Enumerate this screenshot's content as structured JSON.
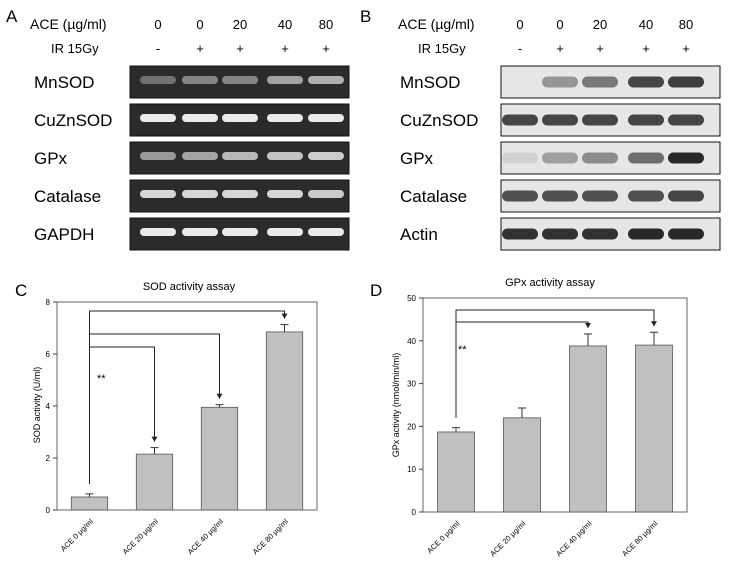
{
  "panels": {
    "A": {
      "letter": "A",
      "ace_label": "ACE (µg/ml)",
      "ir_label": "IR 15Gy",
      "doses": [
        "0",
        "0",
        "20",
        "40",
        "80"
      ],
      "ir": [
        "-",
        "+",
        "+",
        "+",
        "+"
      ],
      "rows": [
        "MnSOD",
        "CuZnSOD",
        "GPx",
        "Catalase",
        "GAPDH"
      ],
      "band_intensity": [
        [
          0.35,
          0.45,
          0.45,
          0.6,
          0.65
        ],
        [
          0.95,
          0.95,
          0.95,
          0.95,
          0.95
        ],
        [
          0.55,
          0.6,
          0.7,
          0.75,
          0.8
        ],
        [
          0.85,
          0.85,
          0.85,
          0.85,
          0.8
        ],
        [
          0.95,
          0.95,
          0.95,
          0.95,
          0.95
        ]
      ]
    },
    "B": {
      "letter": "B",
      "ace_label": "ACE (µg/ml)",
      "ir_label": "IR 15Gy",
      "doses": [
        "0",
        "0",
        "20",
        "40",
        "80"
      ],
      "ir": [
        "-",
        "+",
        "+",
        "+",
        "+"
      ],
      "rows": [
        "MnSOD",
        "CuZnSOD",
        "GPx",
        "Catalase",
        "Actin"
      ],
      "band_intensity": [
        [
          0.0,
          0.4,
          0.55,
          0.8,
          0.85
        ],
        [
          0.8,
          0.8,
          0.8,
          0.8,
          0.8
        ],
        [
          0.1,
          0.35,
          0.45,
          0.6,
          0.95
        ],
        [
          0.75,
          0.75,
          0.75,
          0.75,
          0.8
        ],
        [
          0.9,
          0.9,
          0.9,
          0.95,
          0.95
        ]
      ]
    }
  },
  "chart_data": [
    {
      "panel": "C",
      "type": "bar",
      "title": "SOD activity assay",
      "ylabel": "SOD activity (U/ml)",
      "xlabel": "",
      "categories": [
        "ACE 0 µg/ml",
        "ACE 20 µg/ml",
        "ACE 40 µg/ml",
        "ACE 80 µg/ml"
      ],
      "values": [
        0.5,
        2.15,
        3.95,
        6.85
      ],
      "errors": [
        0.12,
        0.25,
        0.1,
        0.28
      ],
      "ylim": [
        0,
        8
      ],
      "yticks": [
        "0",
        "2",
        "4",
        "6",
        "8"
      ],
      "significance": "**",
      "brackets_from": 0,
      "brackets_to": [
        1,
        2,
        3
      ]
    },
    {
      "panel": "D",
      "type": "bar",
      "title": "GPx activity assay",
      "ylabel": "GPx activity (nmol/min/ml)",
      "xlabel": "",
      "categories": [
        "ACE 0 µg/ml",
        "ACE 20 µg/ml",
        "ACE 40 µg/ml",
        "ACE 80 µg/ml"
      ],
      "values": [
        18.7,
        22.0,
        38.8,
        39.0
      ],
      "errors": [
        1.0,
        2.3,
        2.8,
        3.0
      ],
      "ylim": [
        0,
        50
      ],
      "yticks": [
        "0",
        "10",
        "20",
        "30",
        "40",
        "50"
      ],
      "significance": "**",
      "brackets_from": 0,
      "brackets_to": [
        2,
        3
      ]
    }
  ],
  "colors": {
    "bar_fill": "#c0c0c0",
    "bar_stroke": "#555555",
    "blot_dark": "#2b2b2b",
    "wb_bg": "#e9e9e9",
    "wb_band": "#1e1e1e"
  }
}
